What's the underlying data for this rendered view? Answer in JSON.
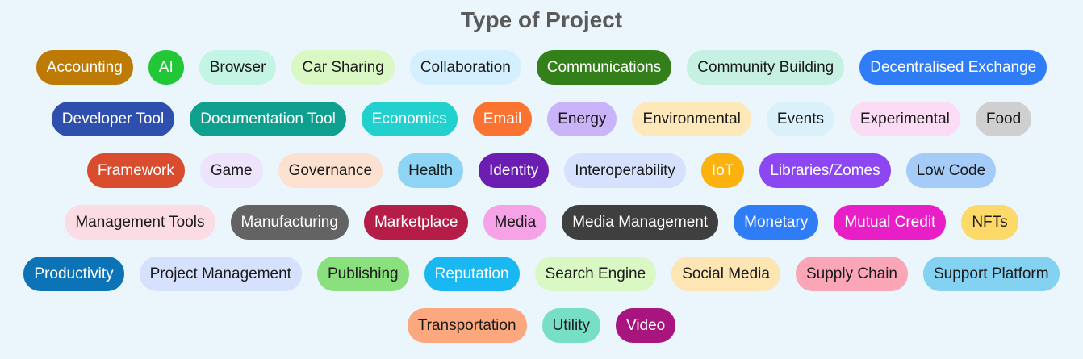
{
  "title": "Type of Project",
  "rows": [
    [
      {
        "label": "Accounting",
        "bg": "#bd7a05",
        "fg": "#ffffff"
      },
      {
        "label": "AI",
        "bg": "#22c738",
        "fg": "#ffffff"
      },
      {
        "label": "Browser",
        "bg": "#c4f4e3",
        "fg": "#1a1a1a"
      },
      {
        "label": "Car Sharing",
        "bg": "#d9f8c4",
        "fg": "#1a1a1a"
      },
      {
        "label": "Collaboration",
        "bg": "#d4effd",
        "fg": "#1a1a1a"
      },
      {
        "label": "Communications",
        "bg": "#33801a",
        "fg": "#ffffff"
      },
      {
        "label": "Community Building",
        "bg": "#c6f1e2",
        "fg": "#1a1a1a"
      },
      {
        "label": "Decentralised Exchange",
        "bg": "#2e7cf6",
        "fg": "#ffffff"
      }
    ],
    [
      {
        "label": "Developer Tool",
        "bg": "#2f4fae",
        "fg": "#ffffff"
      },
      {
        "label": "Documentation Tool",
        "bg": "#0f9f8f",
        "fg": "#ffffff"
      },
      {
        "label": "Economics",
        "bg": "#22d0cd",
        "fg": "#ffffff"
      },
      {
        "label": "Email",
        "bg": "#fb7330",
        "fg": "#ffffff"
      },
      {
        "label": "Energy",
        "bg": "#c9b3f9",
        "fg": "#1a1a1a"
      },
      {
        "label": "Environmental",
        "bg": "#fde8ba",
        "fg": "#1a1a1a"
      },
      {
        "label": "Events",
        "bg": "#daf1fb",
        "fg": "#1a1a1a"
      },
      {
        "label": "Experimental",
        "bg": "#fbdcf4",
        "fg": "#1a1a1a"
      },
      {
        "label": "Food",
        "bg": "#cfcfcf",
        "fg": "#1a1a1a"
      }
    ],
    [
      {
        "label": "Framework",
        "bg": "#d94c2d",
        "fg": "#ffffff"
      },
      {
        "label": "Game",
        "bg": "#ede3fb",
        "fg": "#1a1a1a"
      },
      {
        "label": "Governance",
        "bg": "#fde1d0",
        "fg": "#1a1a1a"
      },
      {
        "label": "Health",
        "bg": "#8dd4f5",
        "fg": "#1a1a1a"
      },
      {
        "label": "Identity",
        "bg": "#6a1db0",
        "fg": "#ffffff"
      },
      {
        "label": "Interoperability",
        "bg": "#d6e2fd",
        "fg": "#1a1a1a"
      },
      {
        "label": "IoT",
        "bg": "#fbb20e",
        "fg": "#ffffff"
      },
      {
        "label": "Libraries/Zomes",
        "bg": "#8c47f3",
        "fg": "#ffffff"
      },
      {
        "label": "Low Code",
        "bg": "#a5cbf8",
        "fg": "#1a1a1a"
      }
    ],
    [
      {
        "label": "Management Tools",
        "bg": "#fcdce4",
        "fg": "#1a1a1a"
      },
      {
        "label": "Manufacturing",
        "bg": "#636363",
        "fg": "#ffffff"
      },
      {
        "label": "Marketplace",
        "bg": "#b51c47",
        "fg": "#ffffff"
      },
      {
        "label": "Media",
        "bg": "#f5a3e6",
        "fg": "#1a1a1a"
      },
      {
        "label": "Media Management",
        "bg": "#3f3f3f",
        "fg": "#ffffff"
      },
      {
        "label": "Monetary",
        "bg": "#2e7cf6",
        "fg": "#ffffff"
      },
      {
        "label": "Mutual Credit",
        "bg": "#e81ec7",
        "fg": "#ffffff"
      },
      {
        "label": "NFTs",
        "bg": "#fdd96a",
        "fg": "#1a1a1a"
      }
    ],
    [
      {
        "label": "Productivity",
        "bg": "#0c73b7",
        "fg": "#ffffff"
      },
      {
        "label": "Project Management",
        "bg": "#d6e2fd",
        "fg": "#1a1a1a"
      },
      {
        "label": "Publishing",
        "bg": "#89e07c",
        "fg": "#1a1a1a"
      },
      {
        "label": "Reputation",
        "bg": "#1ab8f3",
        "fg": "#ffffff"
      },
      {
        "label": "Search Engine",
        "bg": "#d9f8c4",
        "fg": "#1a1a1a"
      },
      {
        "label": "Social Media",
        "bg": "#fde6b3",
        "fg": "#1a1a1a"
      },
      {
        "label": "Supply Chain",
        "bg": "#fba6b7",
        "fg": "#1a1a1a"
      },
      {
        "label": "Support Platform",
        "bg": "#84d2f1",
        "fg": "#1a1a1a"
      }
    ],
    [
      {
        "label": "Transportation",
        "bg": "#fca87e",
        "fg": "#1a1a1a"
      },
      {
        "label": "Utility",
        "bg": "#77dfc6",
        "fg": "#1a1a1a"
      },
      {
        "label": "Video",
        "bg": "#a9157f",
        "fg": "#ffffff"
      }
    ]
  ]
}
